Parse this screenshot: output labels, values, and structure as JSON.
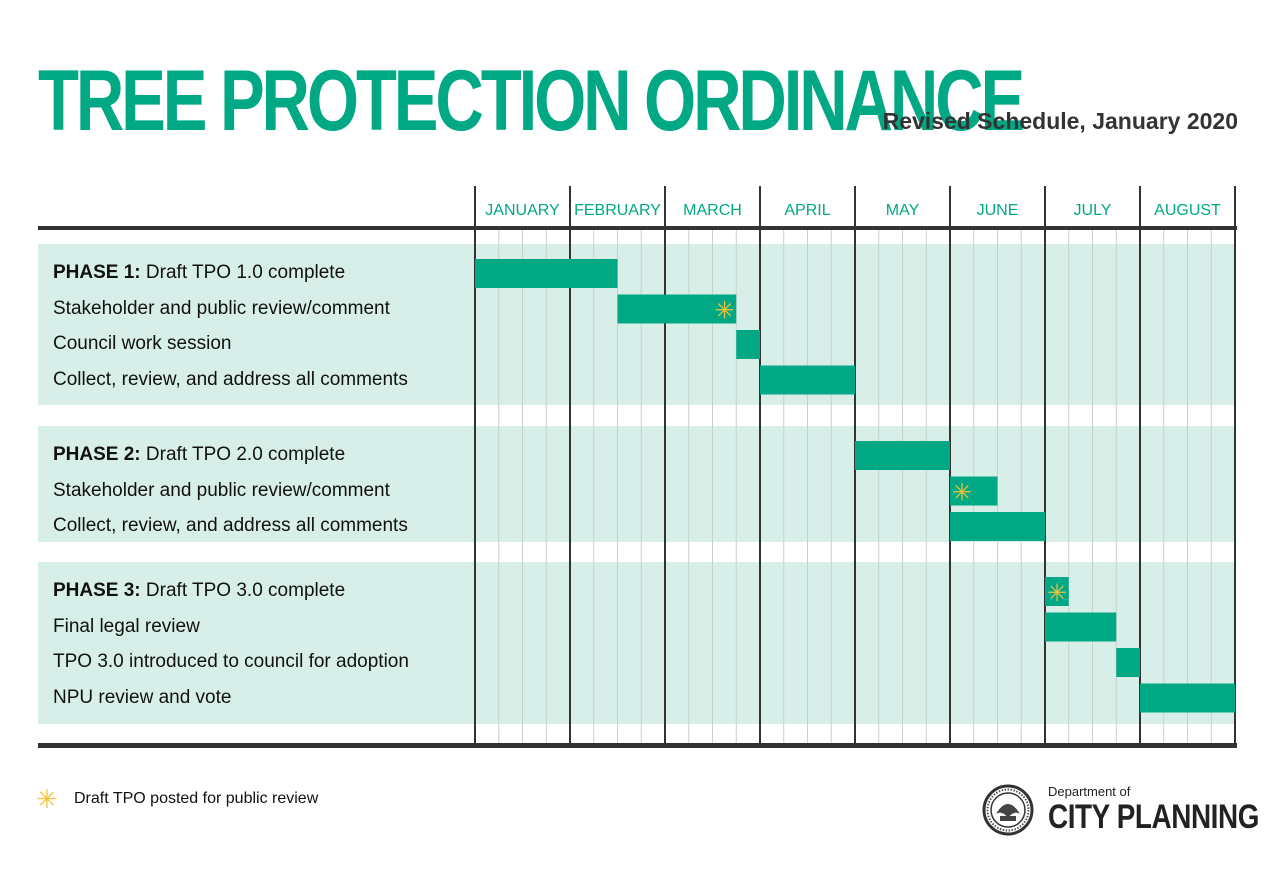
{
  "colors": {
    "accent": "#00a884",
    "band": "#d8efe9",
    "star": "#f3c340",
    "rule": "#333333"
  },
  "chart_data": {
    "type": "gantt",
    "title": "TREE PROTECTION ORDINANCE",
    "subtitle": "Revised Schedule, January 2020",
    "time_unit": "week",
    "months": [
      "JANUARY",
      "FEBRUARY",
      "MARCH",
      "APRIL",
      "MAY",
      "JUNE",
      "JULY",
      "AUGUST"
    ],
    "weeks_per_month": 4,
    "groups": [
      {
        "phase": "PHASE 1:",
        "tasks": [
          {
            "phase_label": "PHASE 1:",
            "label": "Draft TPO 1.0 complete",
            "start": 0,
            "end": 6,
            "star": false
          },
          {
            "label": "Stakeholder and public review/comment",
            "start": 6,
            "end": 11,
            "star": true
          },
          {
            "label": "Council work session",
            "start": 11,
            "end": 12,
            "star": false
          },
          {
            "label": "Collect, review, and address all comments",
            "start": 12,
            "end": 16,
            "star": false
          }
        ]
      },
      {
        "phase": "PHASE 2:",
        "tasks": [
          {
            "phase_label": "PHASE 2:",
            "label": "Draft TPO 2.0 complete",
            "start": 16,
            "end": 20,
            "star": false
          },
          {
            "label": "Stakeholder and public review/comment",
            "start": 20,
            "end": 22,
            "star": true
          },
          {
            "label": "Collect, review, and address all comments",
            "start": 20,
            "end": 24,
            "star": false
          }
        ]
      },
      {
        "phase": "PHASE 3:",
        "tasks": [
          {
            "phase_label": "PHASE 3:",
            "label": "Draft TPO 3.0 complete",
            "start": 24,
            "end": 25,
            "star": true
          },
          {
            "label": "Final legal review",
            "start": 24,
            "end": 27,
            "star": false
          },
          {
            "label": "TPO 3.0 introduced to council for adoption",
            "start": 27,
            "end": 28,
            "star": false
          },
          {
            "label": "NPU review and vote",
            "start": 28,
            "end": 32,
            "star": false
          }
        ]
      }
    ],
    "legend": [
      {
        "symbol": "star",
        "label": "Draft TPO posted for public review"
      }
    ]
  },
  "logo": {
    "dept": "Department of",
    "name": "CITY PLANNING"
  }
}
